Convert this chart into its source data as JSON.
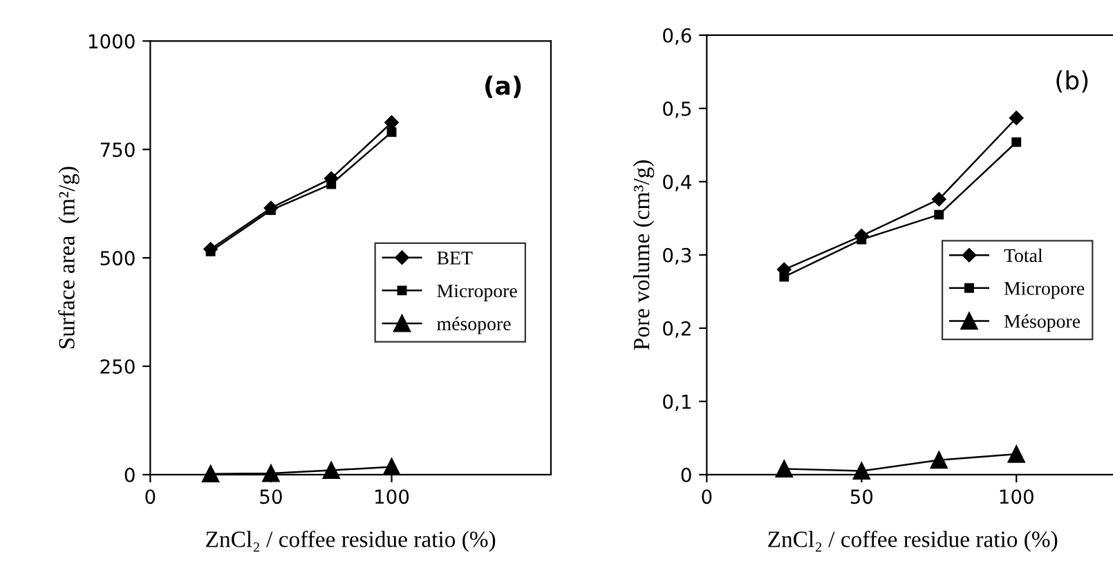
{
  "chart_data": [
    {
      "type": "line",
      "xlabel": "ZnCl₂ / coffee residue ratio (%)",
      "ylabel": "Surface area  (m²/g)",
      "annotations": [
        "(a)"
      ],
      "x": [
        25,
        50,
        75,
        100
      ],
      "xlim": [
        0,
        166
      ],
      "xticks": [
        0,
        50,
        100
      ],
      "ylim": [
        0,
        1000
      ],
      "yticks": [
        0,
        250,
        500,
        750,
        1000
      ],
      "grid": false,
      "legend": "center right",
      "series": [
        {
          "name": "BET",
          "color": "#000000",
          "marker": "diamond",
          "values": [
            520,
            615,
            683,
            812
          ]
        },
        {
          "name": "Micropore",
          "color": "#000000",
          "marker": "square",
          "values": [
            515,
            610,
            670,
            790
          ]
        },
        {
          "name": "mésopore",
          "color": "#000000",
          "marker": "triangle",
          "values": [
            2,
            3,
            10,
            18
          ]
        }
      ]
    },
    {
      "type": "line",
      "xlabel": "ZnCl₂ / coffee residue ratio (%)",
      "ylabel": "Pore volume (cm³/g)",
      "annotations": [
        "(b)"
      ],
      "x": [
        25,
        50,
        75,
        100
      ],
      "xlim": [
        0,
        133
      ],
      "xticks": [
        0,
        50,
        100
      ],
      "ylim": [
        0,
        0.6
      ],
      "yticks": [
        0,
        {
          "value": 0.1,
          "label": "0,1"
        },
        {
          "value": 0.2,
          "label": "0,2"
        },
        {
          "value": 0.3,
          "label": "0,3"
        },
        {
          "value": 0.4,
          "label": "0,4"
        },
        {
          "value": 0.5,
          "label": "0,5"
        },
        {
          "value": 0.6,
          "label": "0,6"
        }
      ],
      "grid": false,
      "legend": "center right",
      "series": [
        {
          "name": "Total",
          "color": "#000000",
          "marker": "diamond",
          "values": [
            0.28,
            0.326,
            0.376,
            0.487
          ]
        },
        {
          "name": "Micropore",
          "color": "#000000",
          "marker": "square",
          "values": [
            0.27,
            0.321,
            0.355,
            0.454
          ]
        },
        {
          "name": "Mésopore",
          "color": "#000000",
          "marker": "triangle",
          "values": [
            0.008,
            0.005,
            0.02,
            0.028
          ]
        }
      ]
    }
  ]
}
